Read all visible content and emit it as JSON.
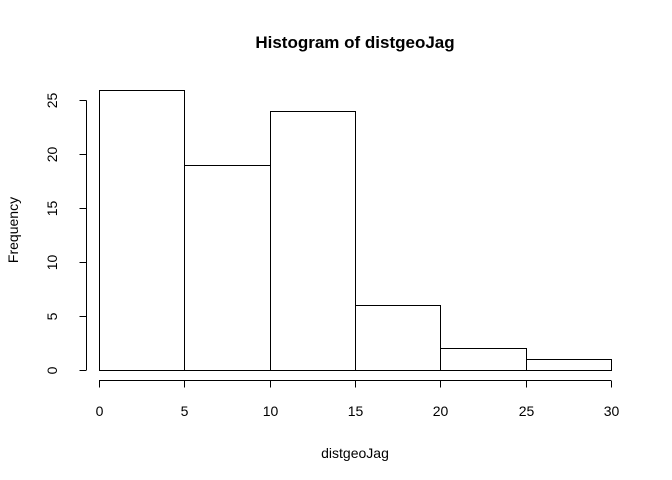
{
  "chart_data": {
    "type": "histogram",
    "title": "Histogram of distgeoJag",
    "xlabel": "distgeoJag",
    "ylabel": "Frequency",
    "bins": [
      {
        "start": 0,
        "end": 5,
        "count": 26
      },
      {
        "start": 5,
        "end": 10,
        "count": 19
      },
      {
        "start": 10,
        "end": 15,
        "count": 24
      },
      {
        "start": 15,
        "end": 20,
        "count": 6
      },
      {
        "start": 20,
        "end": 25,
        "count": 2
      },
      {
        "start": 25,
        "end": 30,
        "count": 1
      }
    ],
    "x_ticks": [
      "0",
      "5",
      "10",
      "15",
      "20",
      "25",
      "30"
    ],
    "y_ticks": [
      "0",
      "5",
      "10",
      "15",
      "20",
      "25"
    ],
    "xlim": [
      0,
      30
    ],
    "ylim": [
      0,
      26
    ],
    "grid": false,
    "legend": "none",
    "colors": {
      "bar_fill": "#ffffff",
      "bar_stroke": "#000000",
      "text": "#000000"
    }
  }
}
